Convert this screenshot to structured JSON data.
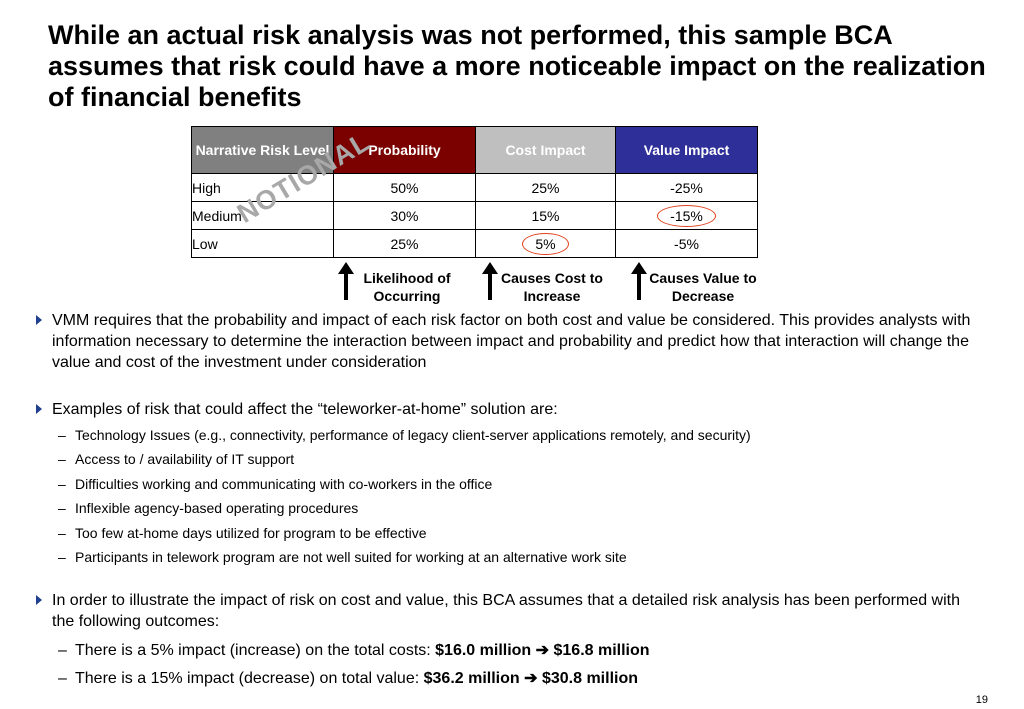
{
  "title": "While an actual risk analysis was not performed, this sample BCA assumes that risk could have a more noticeable impact on the realization of financial benefits",
  "table": {
    "headers": [
      "Narrative Risk Level",
      "Probability",
      "Cost Impact",
      "Value Impact"
    ],
    "rows": [
      [
        "High",
        "50%",
        "25%",
        "-25%"
      ],
      [
        "Medium",
        "30%",
        "15%",
        "-15%"
      ],
      [
        "Low",
        "25%",
        "5%",
        "-5%"
      ]
    ],
    "header_colors": [
      "#808080",
      "#7b0000",
      "#bfbfbf",
      "#2f2f99"
    ]
  },
  "watermark": "NOTIONAL",
  "annotations": [
    {
      "line1": "Likelihood of",
      "line2": "Occurring"
    },
    {
      "line1": "Causes Cost to",
      "line2": "Increase"
    },
    {
      "line1": "Causes Value to",
      "line2": "Decrease"
    }
  ],
  "bullets": [
    "VMM requires that the probability and impact of each risk factor on both cost and value be considered.  This provides analysts with  information necessary to determine the interaction between impact and probability and predict how that interaction will change the value and cost of the investment under consideration",
    "Examples of risk that could affect the “teleworker-at-home” solution are:",
    "In order to illustrate the impact of risk on cost and value, this BCA assumes that a detailed risk analysis has been performed with the following outcomes:"
  ],
  "risk_examples": [
    "Technology Issues (e.g., connectivity, performance of legacy client-server applications remotely, and security)",
    "Access to / availability of IT support",
    "Difficulties working and communicating with  co-workers in the office",
    "Inflexible agency-based operating procedures",
    "Too few at-home days utilized for program to be effective",
    "Participants in telework program are not well suited for working at an alternative work site"
  ],
  "outcomes": [
    {
      "text": "There is a 5% impact (increase) on the total costs: ",
      "bold": "$16.0 million ➔ $16.8 million"
    },
    {
      "text": "There is a 15% impact (decrease) on total value: ",
      "bold": "$36.2 million ➔ $30.8 million"
    }
  ],
  "page_number": "19",
  "accent_color": "#1f3f8f",
  "highlight_color": "#e0401a"
}
